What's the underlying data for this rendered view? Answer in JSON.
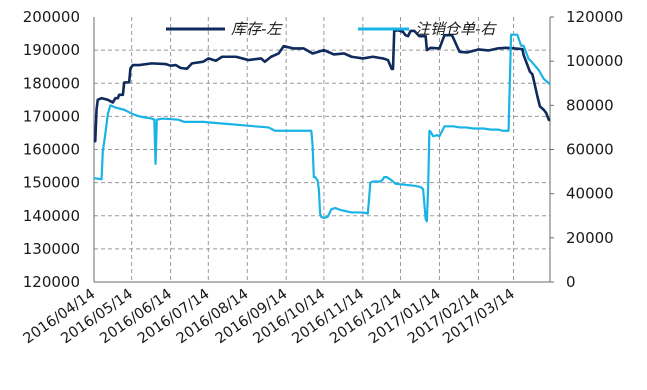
{
  "chart_data": {
    "type": "line",
    "title": "",
    "xlabel": "",
    "ylabel_left": "",
    "ylabel_right": "",
    "x_tick_labels": [
      "2016/04/14",
      "2016/05/14",
      "2016/06/14",
      "2016/07/14",
      "2016/08/14",
      "2016/09/14",
      "2016/10/14",
      "2016/11/14",
      "2016/12/14",
      "2017/01/14",
      "2017/02/14",
      "2017/03/14"
    ],
    "x_range": [
      "2016-04-14",
      "2017-04-12"
    ],
    "ylim_left": [
      120000,
      200000
    ],
    "yticks_left": [
      120000,
      130000,
      140000,
      150000,
      160000,
      170000,
      180000,
      190000,
      200000
    ],
    "ylim_right": [
      0,
      120000
    ],
    "yticks_right": [
      0,
      20000,
      40000,
      60000,
      80000,
      100000,
      120000
    ],
    "grid": true,
    "legend_position": "top",
    "series": [
      {
        "name": "库存-左",
        "axis": "left",
        "color": "#0f2a5c",
        "points": [
          [
            "2016-04-14",
            162500
          ],
          [
            "2016-04-15",
            162500
          ],
          [
            "2016-04-16",
            172000
          ],
          [
            "2016-04-17",
            175000
          ],
          [
            "2016-04-20",
            175500
          ],
          [
            "2016-04-25",
            175000
          ],
          [
            "2016-04-29",
            174200
          ],
          [
            "2016-05-01",
            175500
          ],
          [
            "2016-05-03",
            175500
          ],
          [
            "2016-05-04",
            176500
          ],
          [
            "2016-05-07",
            176500
          ],
          [
            "2016-05-08",
            180200
          ],
          [
            "2016-05-12",
            180300
          ],
          [
            "2016-05-13",
            184500
          ],
          [
            "2016-05-15",
            185500
          ],
          [
            "2016-05-20",
            185500
          ],
          [
            "2016-05-30",
            186000
          ],
          [
            "2016-06-10",
            185800
          ],
          [
            "2016-06-14",
            185300
          ],
          [
            "2016-06-18",
            185500
          ],
          [
            "2016-06-22",
            184600
          ],
          [
            "2016-06-27",
            184400
          ],
          [
            "2016-07-01",
            186000
          ],
          [
            "2016-07-10",
            186500
          ],
          [
            "2016-07-14",
            187500
          ],
          [
            "2016-07-20",
            186800
          ],
          [
            "2016-07-25",
            188000
          ],
          [
            "2016-08-05",
            188000
          ],
          [
            "2016-08-15",
            187000
          ],
          [
            "2016-08-25",
            187500
          ],
          [
            "2016-08-28",
            186500
          ],
          [
            "2016-09-02",
            188000
          ],
          [
            "2016-09-08",
            189000
          ],
          [
            "2016-09-12",
            191200
          ],
          [
            "2016-09-20",
            190500
          ],
          [
            "2016-09-28",
            190500
          ],
          [
            "2016-10-05",
            189000
          ],
          [
            "2016-10-14",
            190000
          ],
          [
            "2016-10-22",
            188700
          ],
          [
            "2016-10-30",
            189000
          ],
          [
            "2016-11-05",
            188000
          ],
          [
            "2016-11-14",
            187500
          ],
          [
            "2016-11-22",
            188000
          ],
          [
            "2016-11-30",
            187500
          ],
          [
            "2016-12-04",
            187000
          ],
          [
            "2016-12-07",
            184300
          ],
          [
            "2016-12-08",
            184300
          ],
          [
            "2016-12-09",
            195800
          ],
          [
            "2016-12-12",
            196000
          ],
          [
            "2016-12-16",
            195500
          ],
          [
            "2016-12-18",
            194500
          ],
          [
            "2016-12-20",
            194200
          ],
          [
            "2016-12-22",
            195800
          ],
          [
            "2016-12-25",
            195800
          ],
          [
            "2016-12-29",
            194200
          ],
          [
            "2017-01-03",
            194200
          ],
          [
            "2017-01-04",
            190000
          ],
          [
            "2017-01-07",
            190700
          ],
          [
            "2017-01-14",
            190500
          ],
          [
            "2017-01-18",
            194500
          ],
          [
            "2017-01-24",
            194500
          ],
          [
            "2017-01-30",
            189500
          ],
          [
            "2017-02-05",
            189300
          ],
          [
            "2017-02-14",
            190200
          ],
          [
            "2017-02-22",
            189900
          ],
          [
            "2017-03-01",
            190500
          ],
          [
            "2017-03-08",
            190700
          ],
          [
            "2017-03-15",
            190500
          ],
          [
            "2017-03-21",
            190300
          ],
          [
            "2017-03-22",
            188500
          ],
          [
            "2017-03-24",
            186500
          ],
          [
            "2017-03-27",
            183500
          ],
          [
            "2017-03-29",
            182700
          ],
          [
            "2017-04-02",
            176000
          ],
          [
            "2017-04-04",
            173000
          ],
          [
            "2017-04-07",
            172000
          ],
          [
            "2017-04-09",
            171000
          ],
          [
            "2017-04-11",
            169000
          ],
          [
            "2017-04-12",
            168800
          ]
        ]
      },
      {
        "name": "注销仓单-右",
        "axis": "right",
        "color": "#1ab3e6",
        "points": [
          [
            "2016-04-14",
            47000
          ],
          [
            "2016-04-17",
            46800
          ],
          [
            "2016-04-20",
            46500
          ],
          [
            "2016-04-21",
            59000
          ],
          [
            "2016-04-23",
            67000
          ],
          [
            "2016-04-25",
            76000
          ],
          [
            "2016-04-27",
            80000
          ],
          [
            "2016-05-01",
            79000
          ],
          [
            "2016-05-08",
            78000
          ],
          [
            "2016-05-15",
            76000
          ],
          [
            "2016-05-20",
            75000
          ],
          [
            "2016-05-25",
            74500
          ],
          [
            "2016-05-30",
            74000
          ],
          [
            "2016-06-01",
            73500
          ],
          [
            "2016-06-02",
            53500
          ],
          [
            "2016-06-03",
            73500
          ],
          [
            "2016-06-08",
            74000
          ],
          [
            "2016-06-20",
            73500
          ],
          [
            "2016-06-25",
            72500
          ],
          [
            "2016-07-10",
            72500
          ],
          [
            "2016-07-20",
            72000
          ],
          [
            "2016-07-31",
            71500
          ],
          [
            "2016-08-10",
            71000
          ],
          [
            "2016-08-20",
            70500
          ],
          [
            "2016-08-31",
            70000
          ],
          [
            "2016-09-05",
            68500
          ],
          [
            "2016-09-20",
            68500
          ],
          [
            "2016-10-04",
            68500
          ],
          [
            "2016-10-05",
            62000
          ],
          [
            "2016-10-06",
            47500
          ],
          [
            "2016-10-07",
            47500
          ],
          [
            "2016-10-09",
            46000
          ],
          [
            "2016-10-10",
            42000
          ],
          [
            "2016-10-11",
            31000
          ],
          [
            "2016-10-12",
            29500
          ],
          [
            "2016-10-14",
            29000
          ],
          [
            "2016-10-17",
            29500
          ],
          [
            "2016-10-20",
            33000
          ],
          [
            "2016-10-23",
            33500
          ],
          [
            "2016-10-28",
            32500
          ],
          [
            "2016-11-05",
            31500
          ],
          [
            "2016-11-14",
            31500
          ],
          [
            "2016-11-18",
            31000
          ],
          [
            "2016-11-19",
            38000
          ],
          [
            "2016-11-20",
            45000
          ],
          [
            "2016-11-22",
            45500
          ],
          [
            "2016-11-28",
            45500
          ],
          [
            "2016-11-30",
            46500
          ],
          [
            "2016-12-01",
            47500
          ],
          [
            "2016-12-03",
            47500
          ],
          [
            "2016-12-07",
            46000
          ],
          [
            "2016-12-10",
            44500
          ],
          [
            "2016-12-18",
            44000
          ],
          [
            "2016-12-26",
            43500
          ],
          [
            "2016-12-30",
            43000
          ],
          [
            "2017-01-01",
            42000
          ],
          [
            "2017-01-03",
            28500
          ],
          [
            "2017-01-04",
            27500
          ],
          [
            "2017-01-05",
            43000
          ],
          [
            "2017-01-06",
            68500
          ],
          [
            "2017-01-07",
            68000
          ],
          [
            "2017-01-09",
            66000
          ],
          [
            "2017-01-12",
            66500
          ],
          [
            "2017-01-14",
            66000
          ],
          [
            "2017-01-18",
            70500
          ],
          [
            "2017-01-25",
            70500
          ],
          [
            "2017-01-30",
            70000
          ],
          [
            "2017-02-04",
            70000
          ],
          [
            "2017-02-10",
            69500
          ],
          [
            "2017-02-18",
            69500
          ],
          [
            "2017-02-24",
            69000
          ],
          [
            "2017-02-28",
            69000
          ],
          [
            "2017-03-02",
            69000
          ],
          [
            "2017-03-05",
            68500
          ],
          [
            "2017-03-08",
            68500
          ],
          [
            "2017-03-10",
            68500
          ],
          [
            "2017-03-12",
            112000
          ],
          [
            "2017-03-14",
            112000
          ],
          [
            "2017-03-17",
            112000
          ],
          [
            "2017-03-20",
            107000
          ],
          [
            "2017-03-22",
            107000
          ],
          [
            "2017-03-26",
            101000
          ],
          [
            "2017-03-28",
            100000
          ],
          [
            "2017-04-03",
            96000
          ],
          [
            "2017-04-07",
            92000
          ],
          [
            "2017-04-12",
            89500
          ]
        ]
      }
    ]
  }
}
